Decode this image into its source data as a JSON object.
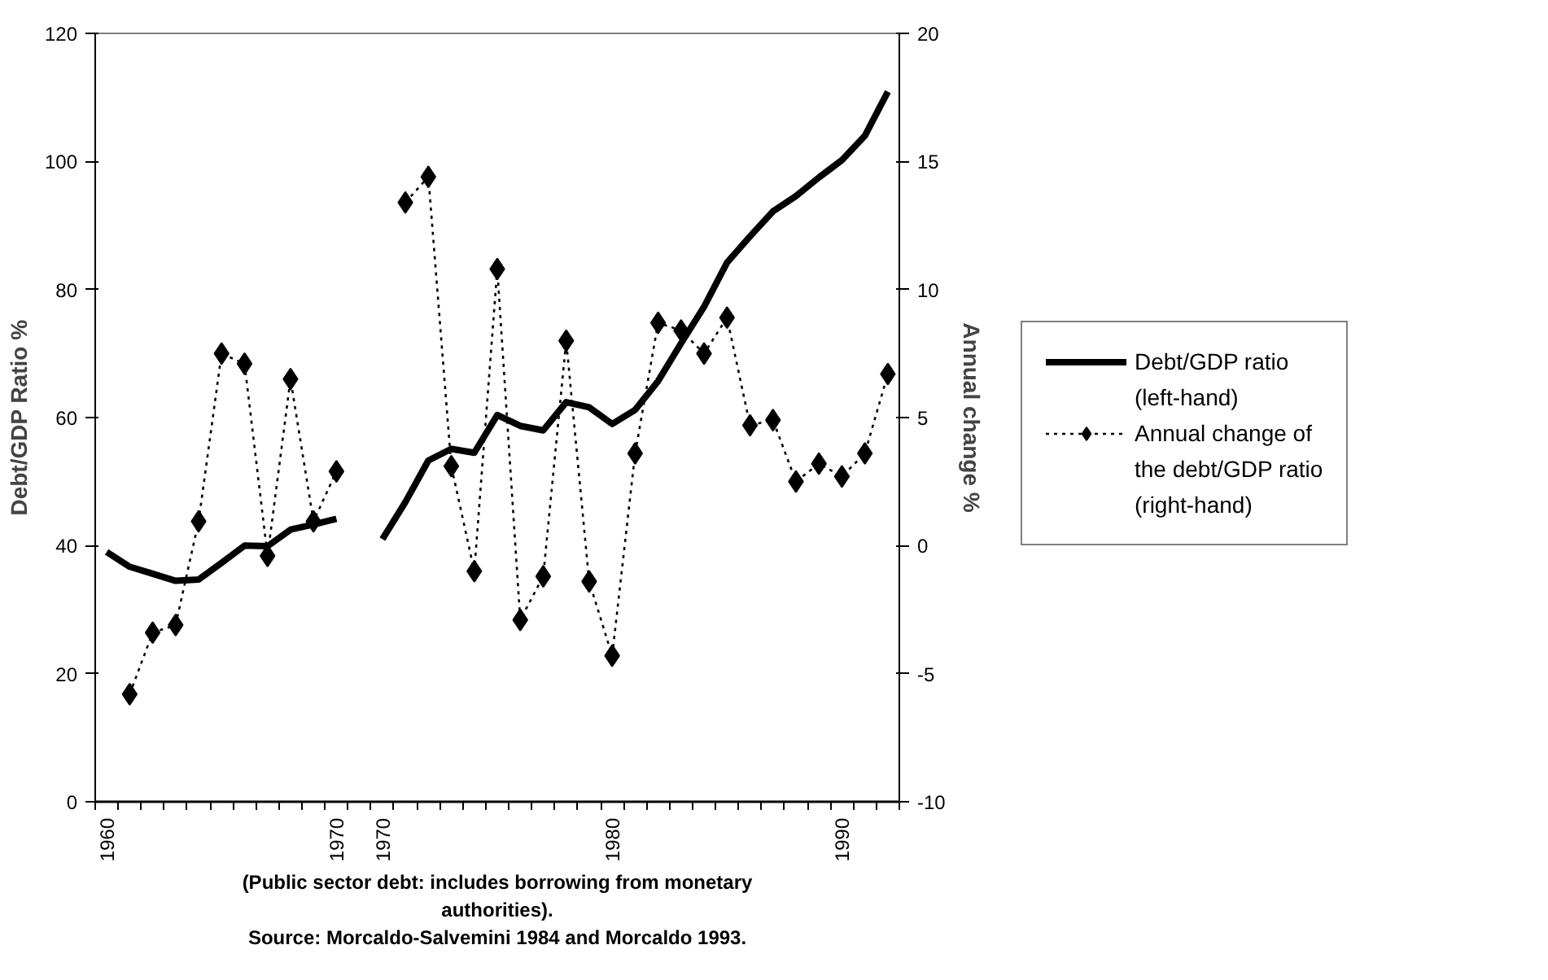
{
  "chart_data": {
    "type": "line",
    "xlabel": null,
    "ylabel": "Debt/GDP Ratio %",
    "y2label": "Annual change %",
    "categories": [
      "1960",
      null,
      null,
      null,
      null,
      null,
      null,
      null,
      null,
      null,
      "1970",
      null,
      "1970",
      null,
      null,
      null,
      null,
      null,
      null,
      null,
      null,
      null,
      "1980",
      null,
      null,
      null,
      null,
      null,
      null,
      null,
      null,
      null,
      "1990",
      null,
      null
    ],
    "ylim": [
      0,
      120
    ],
    "yticks": [
      0,
      20,
      40,
      60,
      80,
      100,
      120
    ],
    "y2lim": [
      -10,
      20
    ],
    "y2ticks": [
      -10,
      -5,
      0,
      5,
      10,
      15,
      20
    ],
    "grid": false,
    "legend": "right",
    "series": [
      {
        "name": "Debt/GDP ratio (left-hand)",
        "color": "#000000",
        "marker": "none",
        "line_style": "solid",
        "values": [
          39.0,
          36.7,
          35.6,
          34.5,
          34.7,
          37.3,
          40.0,
          39.9,
          42.5,
          43.3,
          44.2,
          null,
          41.0,
          46.8,
          53.3,
          55.1,
          54.5,
          60.4,
          58.7,
          58.0,
          62.4,
          61.6,
          59.0,
          61.2,
          65.7,
          71.6,
          77.3,
          84.2,
          88.3,
          92.2,
          94.6,
          97.5,
          100.2,
          104.0,
          110.9
        ]
      },
      {
        "name": "Annual change of the debt/GDP ratio (right-hand)",
        "color": "#000000",
        "axis": "y2",
        "marker": "diamond",
        "line_style": "dotted",
        "values": [
          null,
          -5.8,
          -3.4,
          -3.1,
          0.95,
          7.5,
          7.1,
          -0.4,
          6.5,
          0.95,
          2.9,
          null,
          null,
          13.4,
          14.4,
          3.1,
          -1.0,
          10.8,
          -2.9,
          -1.2,
          8.0,
          -1.4,
          -4.3,
          3.6,
          8.7,
          8.4,
          7.5,
          8.9,
          4.7,
          4.9,
          2.5,
          3.2,
          2.7,
          3.6,
          6.7
        ]
      }
    ],
    "annotations": [
      "(Public sector debt: includes borrowing from monetary authorities).",
      "Source: Morcaldo-Salvemini 1984 and Morcaldo 1993."
    ]
  }
}
